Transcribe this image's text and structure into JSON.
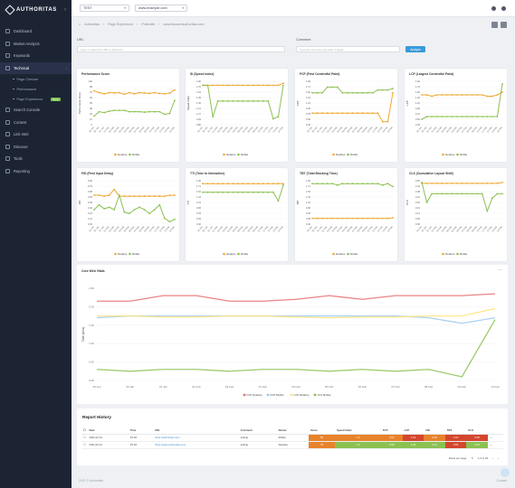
{
  "brand": {
    "name": "AUTHORITAS"
  },
  "sidebar": {
    "items": [
      {
        "label": "Dashboard",
        "icon": "dashboard-icon"
      },
      {
        "label": "Market Analysis",
        "icon": "chart-icon"
      },
      {
        "label": "Keywords",
        "icon": "key-icon"
      },
      {
        "label": "Technical",
        "icon": "wrench-icon",
        "active": true
      },
      {
        "label": "Search Console",
        "icon": "search-icon"
      },
      {
        "label": "Content",
        "icon": "doc-icon"
      },
      {
        "label": "Link Intel",
        "icon": "link-icon"
      },
      {
        "label": "Discover",
        "icon": "compass-icon"
      },
      {
        "label": "Tools",
        "icon": "tools-icon"
      },
      {
        "label": "Reporting",
        "icon": "report-icon"
      }
    ],
    "sub_items": [
      {
        "label": "Page Checker"
      },
      {
        "label": "Performance"
      },
      {
        "label": "Page Experience",
        "badge": "Beta"
      }
    ]
  },
  "topbar": {
    "account": "TEST",
    "site": "www.example.com"
  },
  "breadcrumb": [
    "Authoritas",
    "Page Experience",
    "Pollenific",
    "www.bbcom/authoritas.com"
  ],
  "filters": {
    "url_label": "URL",
    "url_placeholder": "Type or select the URL to add here...",
    "comment_label": "Comment",
    "comment_placeholder": "Type the comment you wish to apply...",
    "button": "Analyse"
  },
  "legend": {
    "desktop": "Desktop",
    "mobile": "Mobile"
  },
  "x_dates": [
    "29 Jan",
    "30 Jan",
    "31 Jan",
    "01 Feb",
    "02 Feb",
    "03 Feb",
    "04 Feb",
    "05 Feb",
    "06 Feb",
    "07 Feb",
    "08 Feb",
    "09 Feb",
    "10 Feb",
    "11 Feb",
    "12 Feb",
    "13 Feb",
    "14 Feb"
  ],
  "colors": {
    "desktop": "#f0a830",
    "mobile": "#8cc152",
    "lcp_d": "#e86f6f",
    "lcp_m": "#ffe37a",
    "cls_d": "#9ec9f0",
    "cls_m": "#8cc152"
  },
  "chart_data": [
    {
      "id": "perf",
      "type": "line",
      "title": "Performance Score",
      "ylabel": "Performance Score",
      "ylim": [
        0,
        100
      ],
      "series": [
        {
          "name": "Desktop",
          "values": [
            78,
            74,
            71,
            74,
            73,
            74,
            70,
            74,
            71,
            74,
            73,
            72,
            74,
            72,
            71,
            73,
            80
          ]
        },
        {
          "name": "Mobile",
          "values": [
            20,
            30,
            28,
            31,
            33,
            33,
            33,
            30,
            30,
            30,
            29,
            30,
            30,
            30,
            24,
            26,
            56
          ]
        }
      ]
    },
    {
      "id": "si",
      "type": "line",
      "title": "SI (Speed Index)",
      "ylabel": "Speed Index",
      "ylim": [
        0.8,
        1.9
      ],
      "series": [
        {
          "name": "Desktop",
          "values": [
            1.8,
            1.8,
            1.8,
            1.8,
            1.8,
            1.8,
            1.8,
            1.8,
            1.8,
            1.8,
            1.8,
            1.8,
            1.8,
            1.8,
            1.8,
            1.8,
            1.85
          ]
        },
        {
          "name": "Mobile",
          "values": [
            1.8,
            1.8,
            1.0,
            1.4,
            1.4,
            1.4,
            1.4,
            1.4,
            1.4,
            1.4,
            1.4,
            1.4,
            1.4,
            1.4,
            0.95,
            1.0,
            1.8
          ]
        }
      ]
    },
    {
      "id": "fcp",
      "type": "line",
      "title": "FCP (First Contentful Paint)",
      "ylabel": "FCP",
      "ylim": [
        0.4,
        1.9
      ],
      "series": [
        {
          "name": "Desktop",
          "values": [
            0.8,
            0.8,
            0.8,
            0.8,
            0.8,
            0.8,
            0.8,
            0.8,
            0.8,
            0.8,
            0.8,
            0.8,
            0.8,
            0.8,
            0.5,
            0.5,
            1.5
          ]
        },
        {
          "name": "Mobile",
          "values": [
            1.5,
            1.5,
            1.5,
            1.7,
            1.7,
            1.7,
            1.5,
            1.5,
            1.5,
            1.5,
            1.5,
            1.5,
            1.5,
            1.6,
            1.6,
            1.6,
            1.65
          ]
        }
      ]
    },
    {
      "id": "lcp",
      "type": "line",
      "title": "LCP (Largest Contentful Paint)",
      "ylabel": "LCP",
      "ylim": [
        0.3,
        1.9
      ],
      "series": [
        {
          "name": "Desktop",
          "values": [
            1.4,
            1.4,
            1.35,
            1.4,
            1.4,
            1.4,
            1.4,
            1.4,
            1.4,
            1.4,
            1.4,
            1.4,
            1.4,
            1.35,
            1.35,
            1.4,
            1.5
          ]
        },
        {
          "name": "Mobile",
          "values": [
            0.5,
            0.6,
            0.6,
            0.6,
            0.6,
            0.6,
            0.6,
            0.6,
            0.6,
            0.6,
            0.6,
            0.6,
            0.6,
            0.6,
            0.6,
            0.6,
            1.8
          ]
        }
      ]
    },
    {
      "id": "fid",
      "type": "line",
      "title": "FID (First Input Delay)",
      "ylabel": "FID",
      "ylim": [
        0,
        0.9
      ],
      "series": [
        {
          "name": "Desktop",
          "values": [
            0.6,
            0.6,
            0.58,
            0.6,
            0.72,
            0.58,
            0.58,
            0.58,
            0.58,
            0.58,
            0.58,
            0.58,
            0.58,
            0.58,
            0.58,
            0.6,
            0.6
          ]
        },
        {
          "name": "Mobile",
          "values": [
            0.3,
            0.4,
            0.32,
            0.35,
            0.3,
            0.6,
            0.25,
            0.22,
            0.3,
            0.35,
            0.3,
            0.22,
            0.3,
            0.4,
            0.12,
            0.05,
            0.1
          ]
        }
      ]
    },
    {
      "id": "tti",
      "type": "line",
      "title": "TTI (Time to Interactive)",
      "ylabel": "TTI",
      "ylim": [
        0.4,
        1.9
      ],
      "series": [
        {
          "name": "Desktop",
          "values": [
            1.8,
            1.8,
            1.8,
            1.8,
            1.8,
            1.8,
            1.8,
            1.8,
            1.8,
            1.8,
            1.8,
            1.8,
            1.8,
            1.8,
            1.8,
            1.8,
            1.8
          ]
        },
        {
          "name": "Mobile",
          "values": [
            1.5,
            1.5,
            1.5,
            1.5,
            1.5,
            1.5,
            1.5,
            1.5,
            1.5,
            1.5,
            1.5,
            1.5,
            1.5,
            1.5,
            1.5,
            1.2,
            1.75
          ]
        }
      ]
    },
    {
      "id": "tbt",
      "type": "line",
      "title": "TBT (Total Blocking Time)",
      "ylabel": "TBT",
      "ylim": [
        0.4,
        1.9
      ],
      "series": [
        {
          "name": "Desktop",
          "values": [
            0.6,
            0.6,
            0.6,
            0.6,
            0.6,
            0.6,
            0.6,
            0.6,
            0.6,
            0.6,
            0.6,
            0.6,
            0.6,
            0.6,
            0.6,
            0.6,
            0.62
          ]
        },
        {
          "name": "Mobile",
          "values": [
            1.8,
            1.8,
            1.8,
            1.8,
            1.8,
            1.75,
            1.8,
            1.8,
            1.8,
            1.8,
            1.8,
            1.8,
            1.8,
            1.8,
            1.75,
            1.8,
            1.7
          ]
        }
      ]
    },
    {
      "id": "cls",
      "type": "line",
      "title": "CLS (Cumulative Layout Shift)",
      "ylabel": "CLS",
      "ylim": [
        0,
        0.5
      ],
      "series": [
        {
          "name": "Desktop",
          "values": [
            0.47,
            0.47,
            0.47,
            0.47,
            0.47,
            0.47,
            0.47,
            0.47,
            0.47,
            0.47,
            0.47,
            0.47,
            0.47,
            0.47,
            0.47,
            0.47,
            0.48
          ]
        },
        {
          "name": "Mobile",
          "values": [
            0.48,
            0.25,
            0.35,
            0.35,
            0.35,
            0.35,
            0.35,
            0.35,
            0.35,
            0.35,
            0.35,
            0.35,
            0.35,
            0.15,
            0.3,
            0.35,
            0.35
          ]
        }
      ]
    },
    {
      "id": "cwv",
      "type": "line",
      "title": "Core Web Vitals",
      "ylabel": "Time (secs)",
      "ylim": [
        0,
        2.5
      ],
      "yticks": [
        "0.00",
        "0.50",
        "1.00",
        "1.50",
        "2.00",
        "2.50"
      ],
      "categories": [
        "29 Jan",
        "30 Jan",
        "31 Jan",
        "01 Feb",
        "02 Feb",
        "03 Feb",
        "04 Feb",
        "05 Feb",
        "06 Feb",
        "07 Feb",
        "08 Feb",
        "09 Feb",
        "14 Feb"
      ],
      "series": [
        {
          "name": "FCP Desktop",
          "values": [
            2.15,
            2.15,
            2.3,
            2.3,
            2.15,
            2.15,
            2.2,
            2.3,
            2.2,
            2.3,
            2.3,
            2.3,
            2.35
          ]
        },
        {
          "name": "FCP Mobile",
          "values": [
            1.7,
            1.75,
            1.75,
            1.75,
            1.75,
            1.75,
            1.75,
            1.75,
            1.75,
            1.75,
            1.7,
            1.55,
            1.7
          ]
        },
        {
          "name": "LCP Desktop",
          "values": [
            1.75,
            1.75,
            1.72,
            1.72,
            1.75,
            1.75,
            1.72,
            1.7,
            1.72,
            1.72,
            1.75,
            1.75,
            1.95
          ]
        },
        {
          "name": "CLS Mobile",
          "values": [
            0.3,
            0.25,
            0.3,
            0.3,
            0.25,
            0.3,
            0.3,
            0.25,
            0.3,
            0.25,
            0.3,
            0.1,
            1.65
          ]
        }
      ]
    }
  ],
  "report": {
    "title": "Report History",
    "columns": [
      "Date",
      "Time",
      "URL",
      "Comment",
      "Device",
      "Score",
      "Speed Index",
      "FCP",
      "LCP",
      "FID",
      "TBT",
      "CLS"
    ],
    "rows": [
      {
        "date": "2021-02-14",
        "time": "15:18",
        "url": "https://authoritas.com/",
        "comment": "testing",
        "device": "Mobile",
        "metrics": [
          "66",
          "1.0",
          "2.03",
          "1.61",
          "0.04",
          "1.62",
          "0.06"
        ]
      },
      {
        "date": "2021-02-14",
        "time": "15:18",
        "url": "https://www.authoritas.com/",
        "comment": "testing",
        "device": "Desktop",
        "metrics": [
          "78",
          "1.0",
          "0.50",
          "1.04",
          "0.11",
          "0.55",
          "0.01"
        ]
      }
    ],
    "pagination": {
      "per_page_label": "Rows per page:",
      "per_page": "5",
      "range": "1-2 of 43"
    }
  },
  "footer": {
    "left": "2021 © Authoritas",
    "right": "Contact"
  }
}
